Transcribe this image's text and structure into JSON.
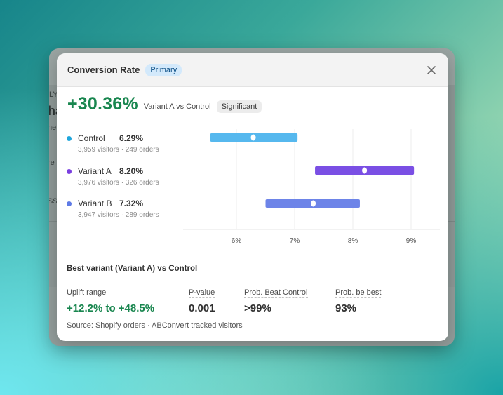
{
  "background_window": {
    "fragments": [
      "LY",
      "ha",
      "he",
      "re",
      ",",
      "S$"
    ]
  },
  "modal": {
    "title": "Conversion Rate",
    "badge": "Primary",
    "close_icon": "close-icon"
  },
  "headline": {
    "uplift": "+30.36%",
    "comparison": "Variant A vs Control",
    "significance": "Significant"
  },
  "variants": [
    {
      "name": "Control",
      "rate": "6.29%",
      "stats": "3,959 visitors · 249 orders",
      "color": "#1fa6dc"
    },
    {
      "name": "Variant A",
      "rate": "8.20%",
      "stats": "3,976 visitors · 326 orders",
      "color": "#7a3fe0"
    },
    {
      "name": "Variant B",
      "rate": "7.32%",
      "stats": "3,947 visitors · 289 orders",
      "color": "#5f7be6"
    }
  ],
  "chart_data": {
    "type": "interval",
    "x_ticks": [
      "6%",
      "7%",
      "8%",
      "9%"
    ],
    "x_tick_values": [
      6,
      7,
      8,
      9
    ],
    "series": [
      {
        "name": "Control",
        "low": 5.55,
        "high": 7.05,
        "point": 6.29,
        "color": "#56b8ee"
      },
      {
        "name": "Variant A",
        "low": 7.35,
        "high": 9.05,
        "point": 8.2,
        "color": "#7a4fe4"
      },
      {
        "name": "Variant B",
        "low": 6.5,
        "high": 8.12,
        "point": 7.32,
        "color": "#6d84e8"
      }
    ]
  },
  "best_variant": {
    "title": "Best variant (Variant A) vs Control",
    "uplift_range_label": "Uplift range",
    "uplift_range_value": "+12.2% to +48.5%",
    "p_value_label": "P-value",
    "p_value": "0.001",
    "prob_beat_label": "Prob. Beat Control",
    "prob_beat": ">99%",
    "prob_best_label": "Prob. be best",
    "prob_best": "93%"
  },
  "source": "Source: Shopify orders · ABConvert tracked visitors"
}
